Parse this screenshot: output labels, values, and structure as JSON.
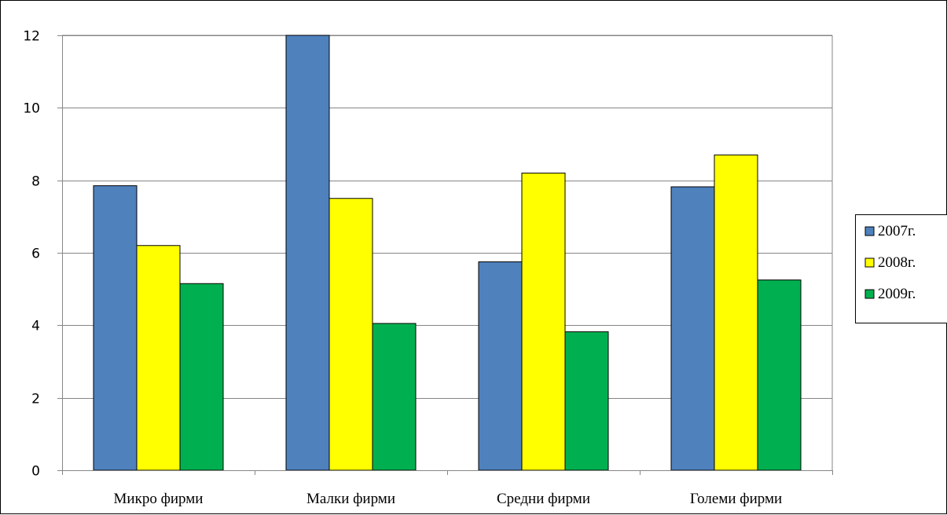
{
  "chart_data": {
    "type": "bar",
    "title": "",
    "xlabel": "",
    "ylabel": "",
    "categories": [
      "Микро фирми",
      "Малки фирми",
      "Средни фирми",
      "Големи фирми"
    ],
    "series": [
      {
        "name": "2007г.",
        "color": "#4f81bd",
        "values": [
          7.85,
          12.0,
          5.75,
          7.82
        ]
      },
      {
        "name": "2008г.",
        "color": "#ffff00",
        "values": [
          6.2,
          7.5,
          8.2,
          8.7
        ]
      },
      {
        "name": "2009г.",
        "color": "#00b050",
        "values": [
          5.15,
          4.05,
          3.82,
          5.25
        ]
      }
    ],
    "ylim": [
      0,
      12
    ],
    "yticks": [
      0,
      2,
      4,
      6,
      8,
      10,
      12
    ],
    "grid": true,
    "legend_position": "right"
  }
}
